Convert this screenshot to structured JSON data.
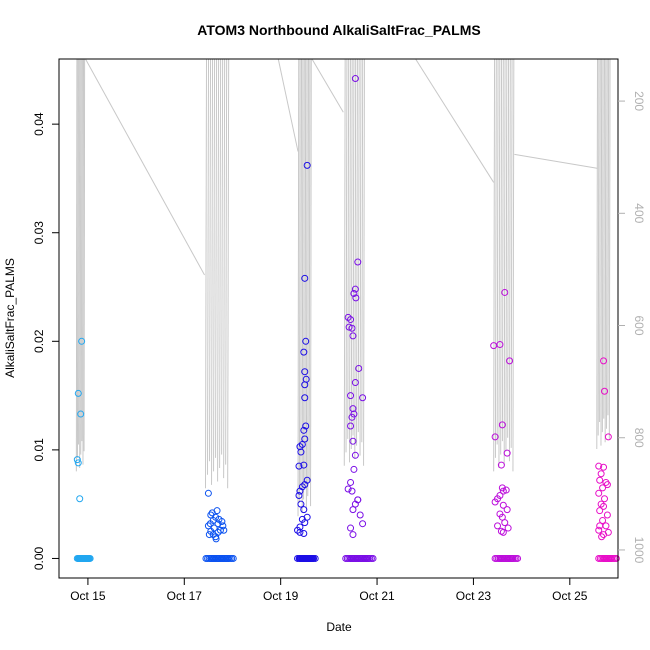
{
  "chart_data": {
    "type": "scatter",
    "title": "ATOM3 Northbound AlkaliSaltFrac_PALMS",
    "xlabel": "Date",
    "ylabel": "AlkaliSaltFrac_PALMS",
    "x_tick_labels": [
      "Oct 15",
      "Oct 17",
      "Oct 19",
      "Oct 21",
      "Oct 23",
      "Oct 25"
    ],
    "x_tick_days": [
      15,
      17,
      19,
      21,
      23,
      25
    ],
    "x_range_days": [
      14.4,
      26.0
    ],
    "ylim": [
      -0.0018,
      0.046
    ],
    "y_ticks": [
      0.0,
      0.01,
      0.02,
      0.03,
      0.04
    ],
    "y_tick_labels": [
      "0.00",
      "0.01",
      "0.02",
      "0.03",
      "0.04"
    ],
    "y2_range": [
      1050,
      125
    ],
    "y2_ticks": [
      200,
      400,
      600,
      800,
      1000
    ],
    "y2_tick_labels": [
      "200",
      "400",
      "600",
      "800",
      "1000"
    ],
    "colors": {
      "profile_line": "#c8c8c8",
      "axis": "#000000",
      "right_axis": "#b0b0b0"
    },
    "series": [
      {
        "color": "#22a7f0",
        "x": [
          14.78,
          14.8,
          14.82,
          14.84,
          14.86,
          14.88,
          14.78,
          14.8,
          14.83,
          14.85,
          14.8,
          14.87
        ],
        "y": [
          0,
          0,
          0,
          0,
          0,
          0,
          0.0091,
          0.0088,
          0.0055,
          0.0133,
          0.0152,
          0.02
        ]
      },
      {
        "color": "#0b52f0",
        "x": [
          17.45,
          17.55,
          17.65,
          17.75,
          17.85,
          17.5,
          17.55,
          17.6,
          17.65,
          17.7,
          17.8,
          17.5,
          17.55,
          17.6,
          17.65,
          17.62,
          17.7,
          17.75,
          17.78,
          17.58,
          17.68,
          17.72,
          17.52,
          17.66,
          17.82,
          17.54
        ],
        "y": [
          0,
          0,
          0,
          0,
          0,
          0.006,
          0.004,
          0.0035,
          0.0038,
          0.0032,
          0.003,
          0.003,
          0.0025,
          0.0022,
          0.002,
          0.0028,
          0.0024,
          0.0026,
          0.0034,
          0.0042,
          0.0044,
          0.0036,
          0.0022,
          0.0018,
          0.0026,
          0.0032
        ]
      },
      {
        "color": "#1c0ee6",
        "x": [
          19.35,
          19.4,
          19.45,
          19.5,
          19.55,
          19.55,
          19.5,
          19.52,
          19.48,
          19.5,
          19.53,
          19.5,
          19.5,
          19.52,
          19.48,
          19.5,
          19.45,
          19.4,
          19.42,
          19.48,
          19.38,
          19.55,
          19.5,
          19.45,
          19.4,
          19.38,
          19.42,
          19.48,
          19.45,
          19.5,
          19.4,
          19.35,
          19.4,
          19.48,
          19.55
        ],
        "y": [
          0,
          0,
          0,
          0,
          0,
          0.0362,
          0.0258,
          0.02,
          0.019,
          0.0172,
          0.0165,
          0.016,
          0.0148,
          0.0122,
          0.0118,
          0.011,
          0.0105,
          0.0103,
          0.0098,
          0.0086,
          0.0085,
          0.0072,
          0.0068,
          0.0066,
          0.0062,
          0.0058,
          0.005,
          0.0045,
          0.0036,
          0.0033,
          0.0029,
          0.0026,
          0.0024,
          0.0023,
          0.0038
        ]
      },
      {
        "color": "#7a0ee6",
        "x": [
          20.35,
          20.45,
          20.55,
          20.65,
          20.75,
          20.55,
          20.6,
          20.55,
          20.52,
          20.56,
          20.4,
          20.45,
          20.42,
          20.48,
          20.5,
          20.62,
          20.55,
          20.7,
          20.45,
          20.5,
          20.52,
          20.48,
          20.45,
          20.5,
          20.55,
          20.52,
          20.45,
          20.48,
          20.6,
          20.55,
          20.5,
          20.65,
          20.7,
          20.45,
          20.5,
          20.6,
          20.4
        ],
        "y": [
          0,
          0,
          0,
          0,
          0,
          0.0442,
          0.0273,
          0.0248,
          0.0244,
          0.024,
          0.0222,
          0.022,
          0.0213,
          0.0212,
          0.0205,
          0.0175,
          0.0162,
          0.0148,
          0.015,
          0.0138,
          0.0133,
          0.013,
          0.0122,
          0.0108,
          0.0095,
          0.0082,
          0.007,
          0.0062,
          0.0054,
          0.005,
          0.0045,
          0.004,
          0.0032,
          0.0028,
          0.0022,
          0.0054,
          0.0064
        ]
      },
      {
        "color": "#bc0edb",
        "x": [
          23.45,
          23.55,
          23.65,
          23.75,
          23.65,
          23.42,
          23.75,
          23.55,
          23.45,
          23.6,
          23.58,
          23.7,
          23.6,
          23.62,
          23.55,
          23.68,
          23.5,
          23.45,
          23.62,
          23.7,
          23.55,
          23.6,
          23.65,
          23.72,
          23.5,
          23.58,
          23.62
        ],
        "y": [
          0,
          0,
          0,
          0,
          0.0245,
          0.0196,
          0.0182,
          0.0197,
          0.0112,
          0.0123,
          0.0086,
          0.0097,
          0.0065,
          0.0062,
          0.0058,
          0.0063,
          0.0055,
          0.0052,
          0.0049,
          0.0045,
          0.0041,
          0.0038,
          0.0033,
          0.0028,
          0.003,
          0.0025,
          0.0024
        ]
      },
      {
        "color": "#e80ec8",
        "x": [
          25.6,
          25.7,
          25.8,
          25.7,
          25.72,
          25.8,
          25.6,
          25.7,
          25.65,
          25.62,
          25.75,
          25.68,
          25.78,
          25.6,
          25.72,
          25.65,
          25.7,
          25.62,
          25.78,
          25.68,
          25.75,
          25.6,
          25.7,
          25.66,
          25.8,
          25.62
        ],
        "y": [
          0,
          0,
          0,
          0.0182,
          0.0154,
          0.0112,
          0.0085,
          0.0084,
          0.0078,
          0.0072,
          0.007,
          0.0065,
          0.0068,
          0.006,
          0.0055,
          0.005,
          0.0048,
          0.0044,
          0.004,
          0.0035,
          0.003,
          0.0026,
          0.0022,
          0.002,
          0.0024,
          0.003
        ]
      }
    ]
  }
}
